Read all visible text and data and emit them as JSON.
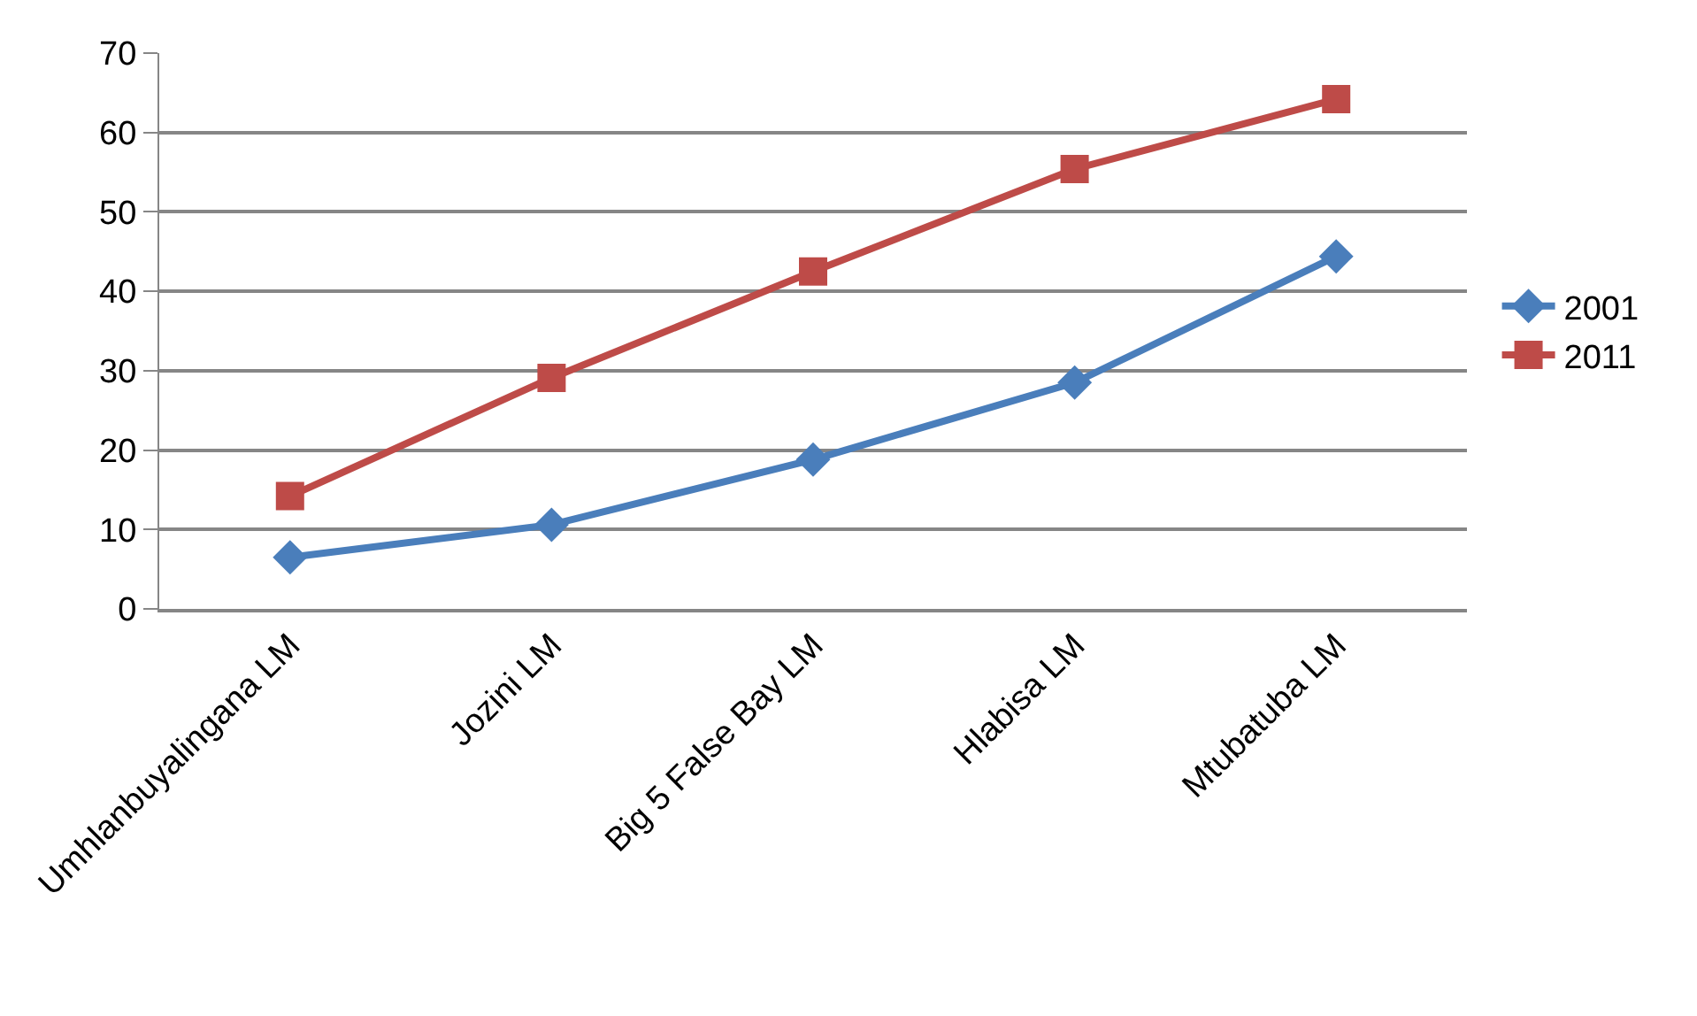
{
  "chart_data": {
    "type": "line",
    "categories": [
      "Umhlanbuyalingana LM",
      "Jozini LM",
      "Big 5 False Bay LM",
      "Hlabisa LM",
      "Mtubatuba LM"
    ],
    "series": [
      {
        "name": "2001",
        "color": "#4a7ebb",
        "marker": "diamond",
        "values": [
          6.5,
          10.6,
          18.8,
          28.5,
          44.4
        ]
      },
      {
        "name": "2011",
        "color": "#be4b48",
        "marker": "square",
        "values": [
          14.2,
          29.1,
          42.5,
          55.4,
          64.2
        ]
      }
    ],
    "ylim": [
      0,
      70
    ],
    "yticks": [
      0,
      10,
      20,
      30,
      40,
      50,
      60,
      70
    ],
    "grid": "y",
    "legend": "right",
    "line_style": "solid"
  }
}
